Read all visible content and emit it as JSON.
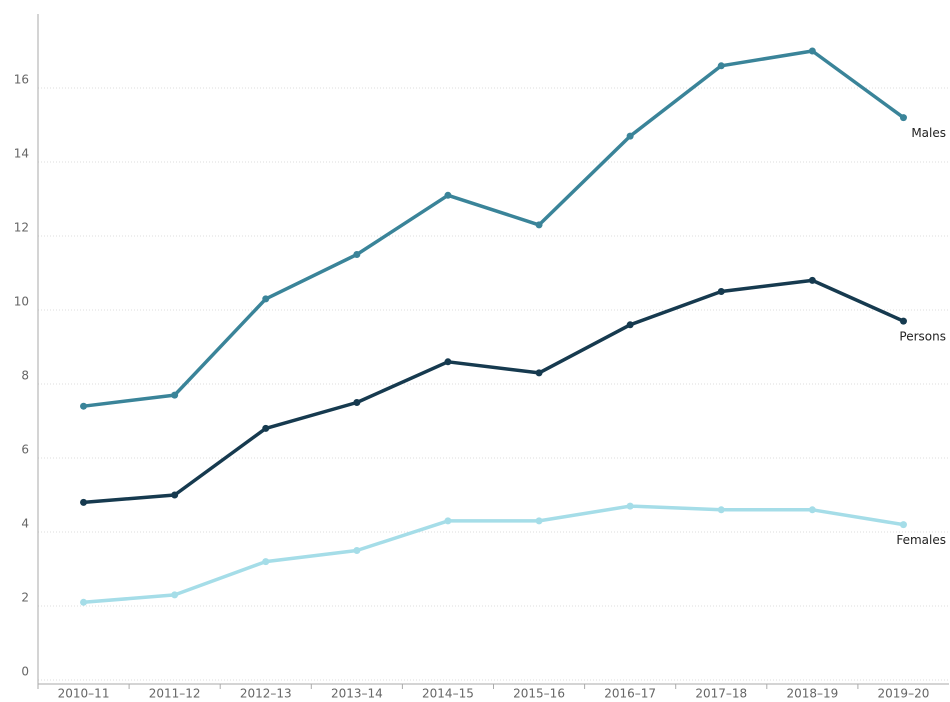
{
  "chart_data": {
    "type": "line",
    "categories": [
      "2010–11",
      "2011–12",
      "2012–13",
      "2013–14",
      "2014–15",
      "2015–16",
      "2016–17",
      "2017–18",
      "2018–19",
      "2019–20"
    ],
    "series": [
      {
        "name": "Males",
        "color": "#3a8499",
        "values": [
          7.4,
          7.7,
          10.3,
          11.5,
          13.1,
          12.3,
          14.7,
          16.6,
          17.0,
          15.2
        ]
      },
      {
        "name": "Persons",
        "color": "#163a4f",
        "values": [
          4.8,
          5.0,
          6.8,
          7.5,
          8.6,
          8.3,
          9.6,
          10.5,
          10.8,
          9.7
        ]
      },
      {
        "name": "Females",
        "color": "#a5dde8",
        "values": [
          2.1,
          2.3,
          3.2,
          3.5,
          4.3,
          4.3,
          4.7,
          4.6,
          4.6,
          4.2
        ]
      }
    ],
    "ylim": [
      0,
      18
    ],
    "yticks": [
      0,
      2,
      4,
      6,
      8,
      10,
      12,
      14,
      16
    ],
    "grid": true
  }
}
